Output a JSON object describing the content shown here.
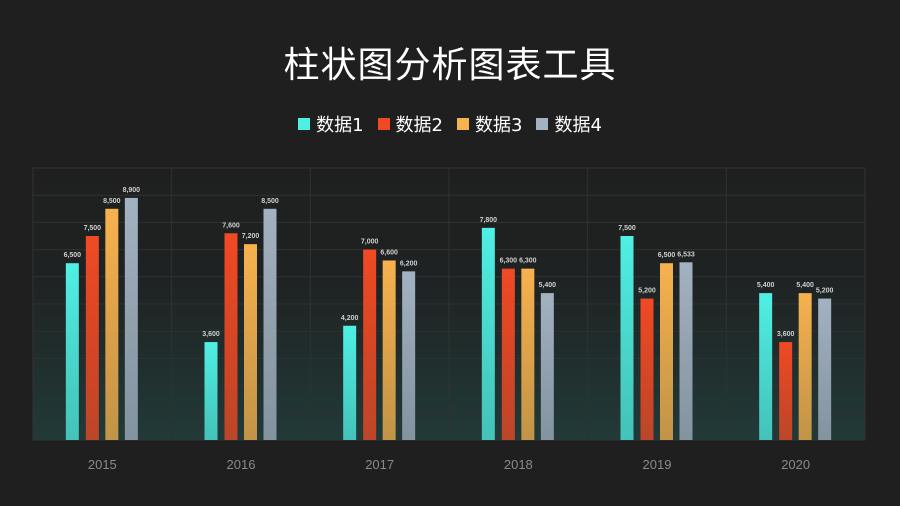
{
  "chart_data": {
    "type": "bar",
    "title": "柱状图分析图表工具",
    "categories": [
      "2015",
      "2016",
      "2017",
      "2018",
      "2019",
      "2020"
    ],
    "series": [
      {
        "name": "数据1",
        "color": "#4ff0e4",
        "values": [
          6500,
          3600,
          4200,
          7800,
          7500,
          5400
        ]
      },
      {
        "name": "数据2",
        "color": "#f04a24",
        "values": [
          7500,
          7600,
          7000,
          6300,
          5200,
          3600
        ]
      },
      {
        "name": "数据3",
        "color": "#f7b24e",
        "values": [
          8500,
          7200,
          6600,
          6300,
          6500,
          5400
        ]
      },
      {
        "name": "数据4",
        "color": "#a3b2c2",
        "values": [
          8900,
          8500,
          6200,
          5400,
          6533,
          5200
        ]
      }
    ],
    "data_labels": [
      [
        "6,500",
        "3,600",
        "4,200",
        "7,800",
        "7,500",
        "5,400"
      ],
      [
        "7,500",
        "7,600",
        "7,000",
        "6,300",
        "5,200",
        "3,600"
      ],
      [
        "8,500",
        "7,200",
        "6,600",
        "6,300",
        "6,500",
        "5,400"
      ],
      [
        "8,900",
        "8,500",
        "6,200",
        "5,400",
        "6,533",
        "5,200"
      ]
    ],
    "ylim": [
      0,
      10000
    ],
    "grid": true,
    "legend": "top-center",
    "xlabel": "",
    "ylabel": ""
  }
}
